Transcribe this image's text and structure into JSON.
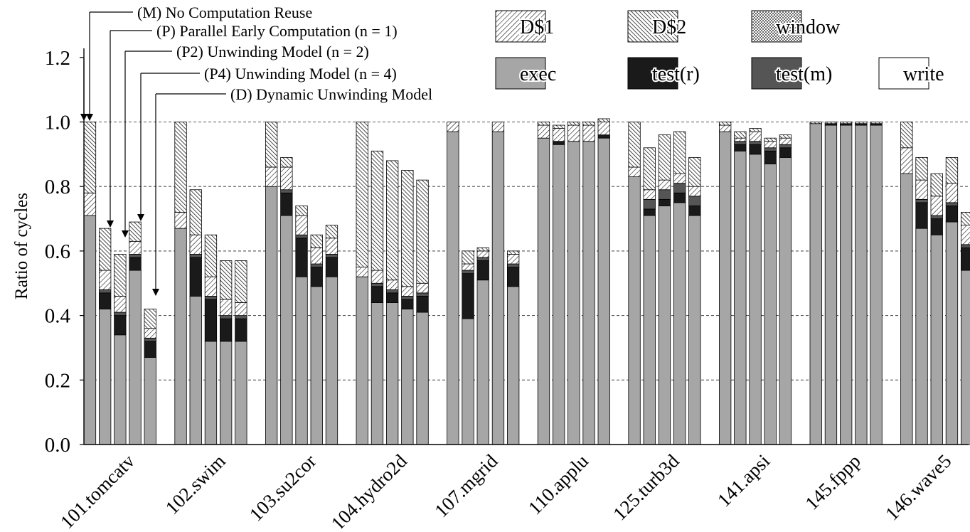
{
  "chart_data": {
    "type": "bar",
    "stacked": true,
    "ylabel": "Ratio of cycles",
    "xlabel": "",
    "ylim": [
      0,
      1.3
    ],
    "yticks": [
      "0.0",
      "0.2",
      "0.4",
      "0.6",
      "0.8",
      "1.0",
      "1.2"
    ],
    "dashed_grid_at": [
      0.2,
      0.4,
      0.6,
      0.8,
      1.0
    ],
    "categories": [
      "101.tomcatv",
      "102.swim",
      "103.su2cor",
      "104.hydro2d",
      "107.mgrid",
      "110.applu",
      "125.turb3d",
      "141.apsi",
      "145.fppp",
      "146.wave5"
    ],
    "models": [
      "M",
      "P",
      "P2",
      "P4",
      "D"
    ],
    "model_annotations": [
      {
        "tag": "(M)",
        "text": "No Computation Reuse",
        "n": ""
      },
      {
        "tag": "(P)",
        "text": "Parallel Early Computation",
        "n": "(n = 1)"
      },
      {
        "tag": "(P2)",
        "text": "Unwinding Model",
        "n": "(n = 2)"
      },
      {
        "tag": "(P4)",
        "text": "Unwinding Model",
        "n": "(n = 4)"
      },
      {
        "tag": "(D)",
        "text": "Dynamic Unwinding Model",
        "n": ""
      }
    ],
    "legend": [
      "D$1",
      "D$2",
      "window",
      "exec",
      "test(r)",
      "test(m)",
      "write"
    ],
    "legend_placement": "top-right",
    "components": [
      "exec",
      "test(r)",
      "test(m)",
      "write",
      "window",
      "D$1",
      "D$2"
    ],
    "colors": {
      "exec": "#a6a6a6",
      "test(r)": "#1a1a1a",
      "test(m)": "#555555",
      "write": "#ffffff",
      "window": "#ffffff",
      "D$1": "#ffffff",
      "D$2": "#ffffff"
    },
    "values": [
      [
        [
          0.71,
          0,
          0,
          0,
          0,
          0.07,
          0.22
        ],
        [
          0.42,
          0.05,
          0.01,
          0,
          0,
          0.06,
          0.13
        ],
        [
          0.34,
          0.06,
          0.01,
          0,
          0,
          0.05,
          0.13
        ],
        [
          0.54,
          0.04,
          0.01,
          0,
          0,
          0.04,
          0.06
        ],
        [
          0.27,
          0.05,
          0.01,
          0,
          0,
          0.03,
          0.06
        ]
      ],
      [
        [
          0.67,
          0,
          0,
          0,
          0,
          0.05,
          0.28
        ],
        [
          0.46,
          0.12,
          0.01,
          0,
          0,
          0.06,
          0.14
        ],
        [
          0.32,
          0.13,
          0.01,
          0,
          0,
          0.06,
          0.13
        ],
        [
          0.32,
          0.07,
          0.01,
          0,
          0,
          0.05,
          0.12
        ],
        [
          0.32,
          0.07,
          0.01,
          0,
          0,
          0.04,
          0.13
        ]
      ],
      [
        [
          0.8,
          0,
          0,
          0,
          0,
          0.06,
          0.14
        ],
        [
          0.71,
          0.07,
          0.01,
          0,
          0,
          0.07,
          0.03
        ],
        [
          0.52,
          0.12,
          0.01,
          0,
          0,
          0.06,
          0.03
        ],
        [
          0.49,
          0.06,
          0.01,
          0,
          0,
          0.05,
          0.04
        ],
        [
          0.52,
          0.06,
          0.01,
          0,
          0,
          0.05,
          0.04
        ]
      ],
      [
        [
          0.52,
          0,
          0,
          0,
          0,
          0.03,
          0.45
        ],
        [
          0.44,
          0.05,
          0.01,
          0,
          0,
          0.04,
          0.37
        ],
        [
          0.44,
          0.03,
          0.01,
          0,
          0,
          0.03,
          0.37
        ],
        [
          0.42,
          0.03,
          0.01,
          0,
          0,
          0.03,
          0.36
        ],
        [
          0.41,
          0.05,
          0.01,
          0,
          0,
          0.03,
          0.32
        ]
      ],
      [
        [
          0.97,
          0,
          0,
          0,
          0,
          0.03,
          0
        ],
        [
          0.39,
          0.14,
          0.01,
          0,
          0,
          0.02,
          0.04
        ],
        [
          0.51,
          0.06,
          0.01,
          0,
          0,
          0.02,
          0.01
        ],
        [
          0.97,
          0,
          0,
          0,
          0,
          0.03,
          0
        ],
        [
          0.49,
          0.06,
          0.01,
          0,
          0,
          0.03,
          0.01
        ]
      ],
      [
        [
          0.95,
          0,
          0,
          0,
          0,
          0.04,
          0.01
        ],
        [
          0.93,
          0.01,
          0,
          0,
          0,
          0.04,
          0.01
        ],
        [
          0.94,
          0,
          0,
          0,
          0,
          0.05,
          0.01
        ],
        [
          0.94,
          0,
          0,
          0,
          0,
          0.05,
          0.01
        ],
        [
          0.95,
          0.01,
          0,
          0,
          0,
          0.04,
          0.01
        ]
      ],
      [
        [
          0.83,
          0,
          0,
          0,
          0,
          0.03,
          0.14
        ],
        [
          0.71,
          0.02,
          0.03,
          0,
          0,
          0.03,
          0.13
        ],
        [
          0.74,
          0.02,
          0.03,
          0,
          0,
          0.03,
          0.14
        ],
        [
          0.75,
          0.03,
          0.03,
          0,
          0,
          0.03,
          0.13
        ],
        [
          0.71,
          0.03,
          0.03,
          0,
          0,
          0.03,
          0.09
        ]
      ],
      [
        [
          0.97,
          0,
          0,
          0,
          0,
          0.02,
          0.01
        ],
        [
          0.91,
          0.02,
          0.01,
          0,
          0,
          0.01,
          0.02
        ],
        [
          0.9,
          0.03,
          0.01,
          0,
          0,
          0.03,
          0.01
        ],
        [
          0.87,
          0.04,
          0.01,
          0,
          0,
          0.02,
          0.01
        ],
        [
          0.89,
          0.03,
          0.01,
          0,
          0,
          0.02,
          0.01
        ]
      ],
      [
        [
          0.995,
          0,
          0,
          0,
          0,
          0,
          0.005
        ],
        [
          0.99,
          0.005,
          0,
          0,
          0,
          0,
          0.005
        ],
        [
          0.99,
          0.005,
          0,
          0,
          0,
          0,
          0.005
        ],
        [
          0.99,
          0.005,
          0,
          0,
          0,
          0,
          0.005
        ],
        [
          0.99,
          0.005,
          0,
          0,
          0,
          0,
          0.005
        ]
      ],
      [
        [
          0.84,
          0,
          0,
          0,
          0,
          0.08,
          0.08
        ],
        [
          0.67,
          0.08,
          0.01,
          0,
          0,
          0.06,
          0.07
        ],
        [
          0.65,
          0.05,
          0.01,
          0,
          0,
          0.06,
          0.07
        ],
        [
          0.69,
          0.05,
          0.01,
          0,
          0,
          0.06,
          0.08
        ],
        [
          0.54,
          0.07,
          0.01,
          0,
          0,
          0.06,
          0.04
        ]
      ]
    ]
  }
}
